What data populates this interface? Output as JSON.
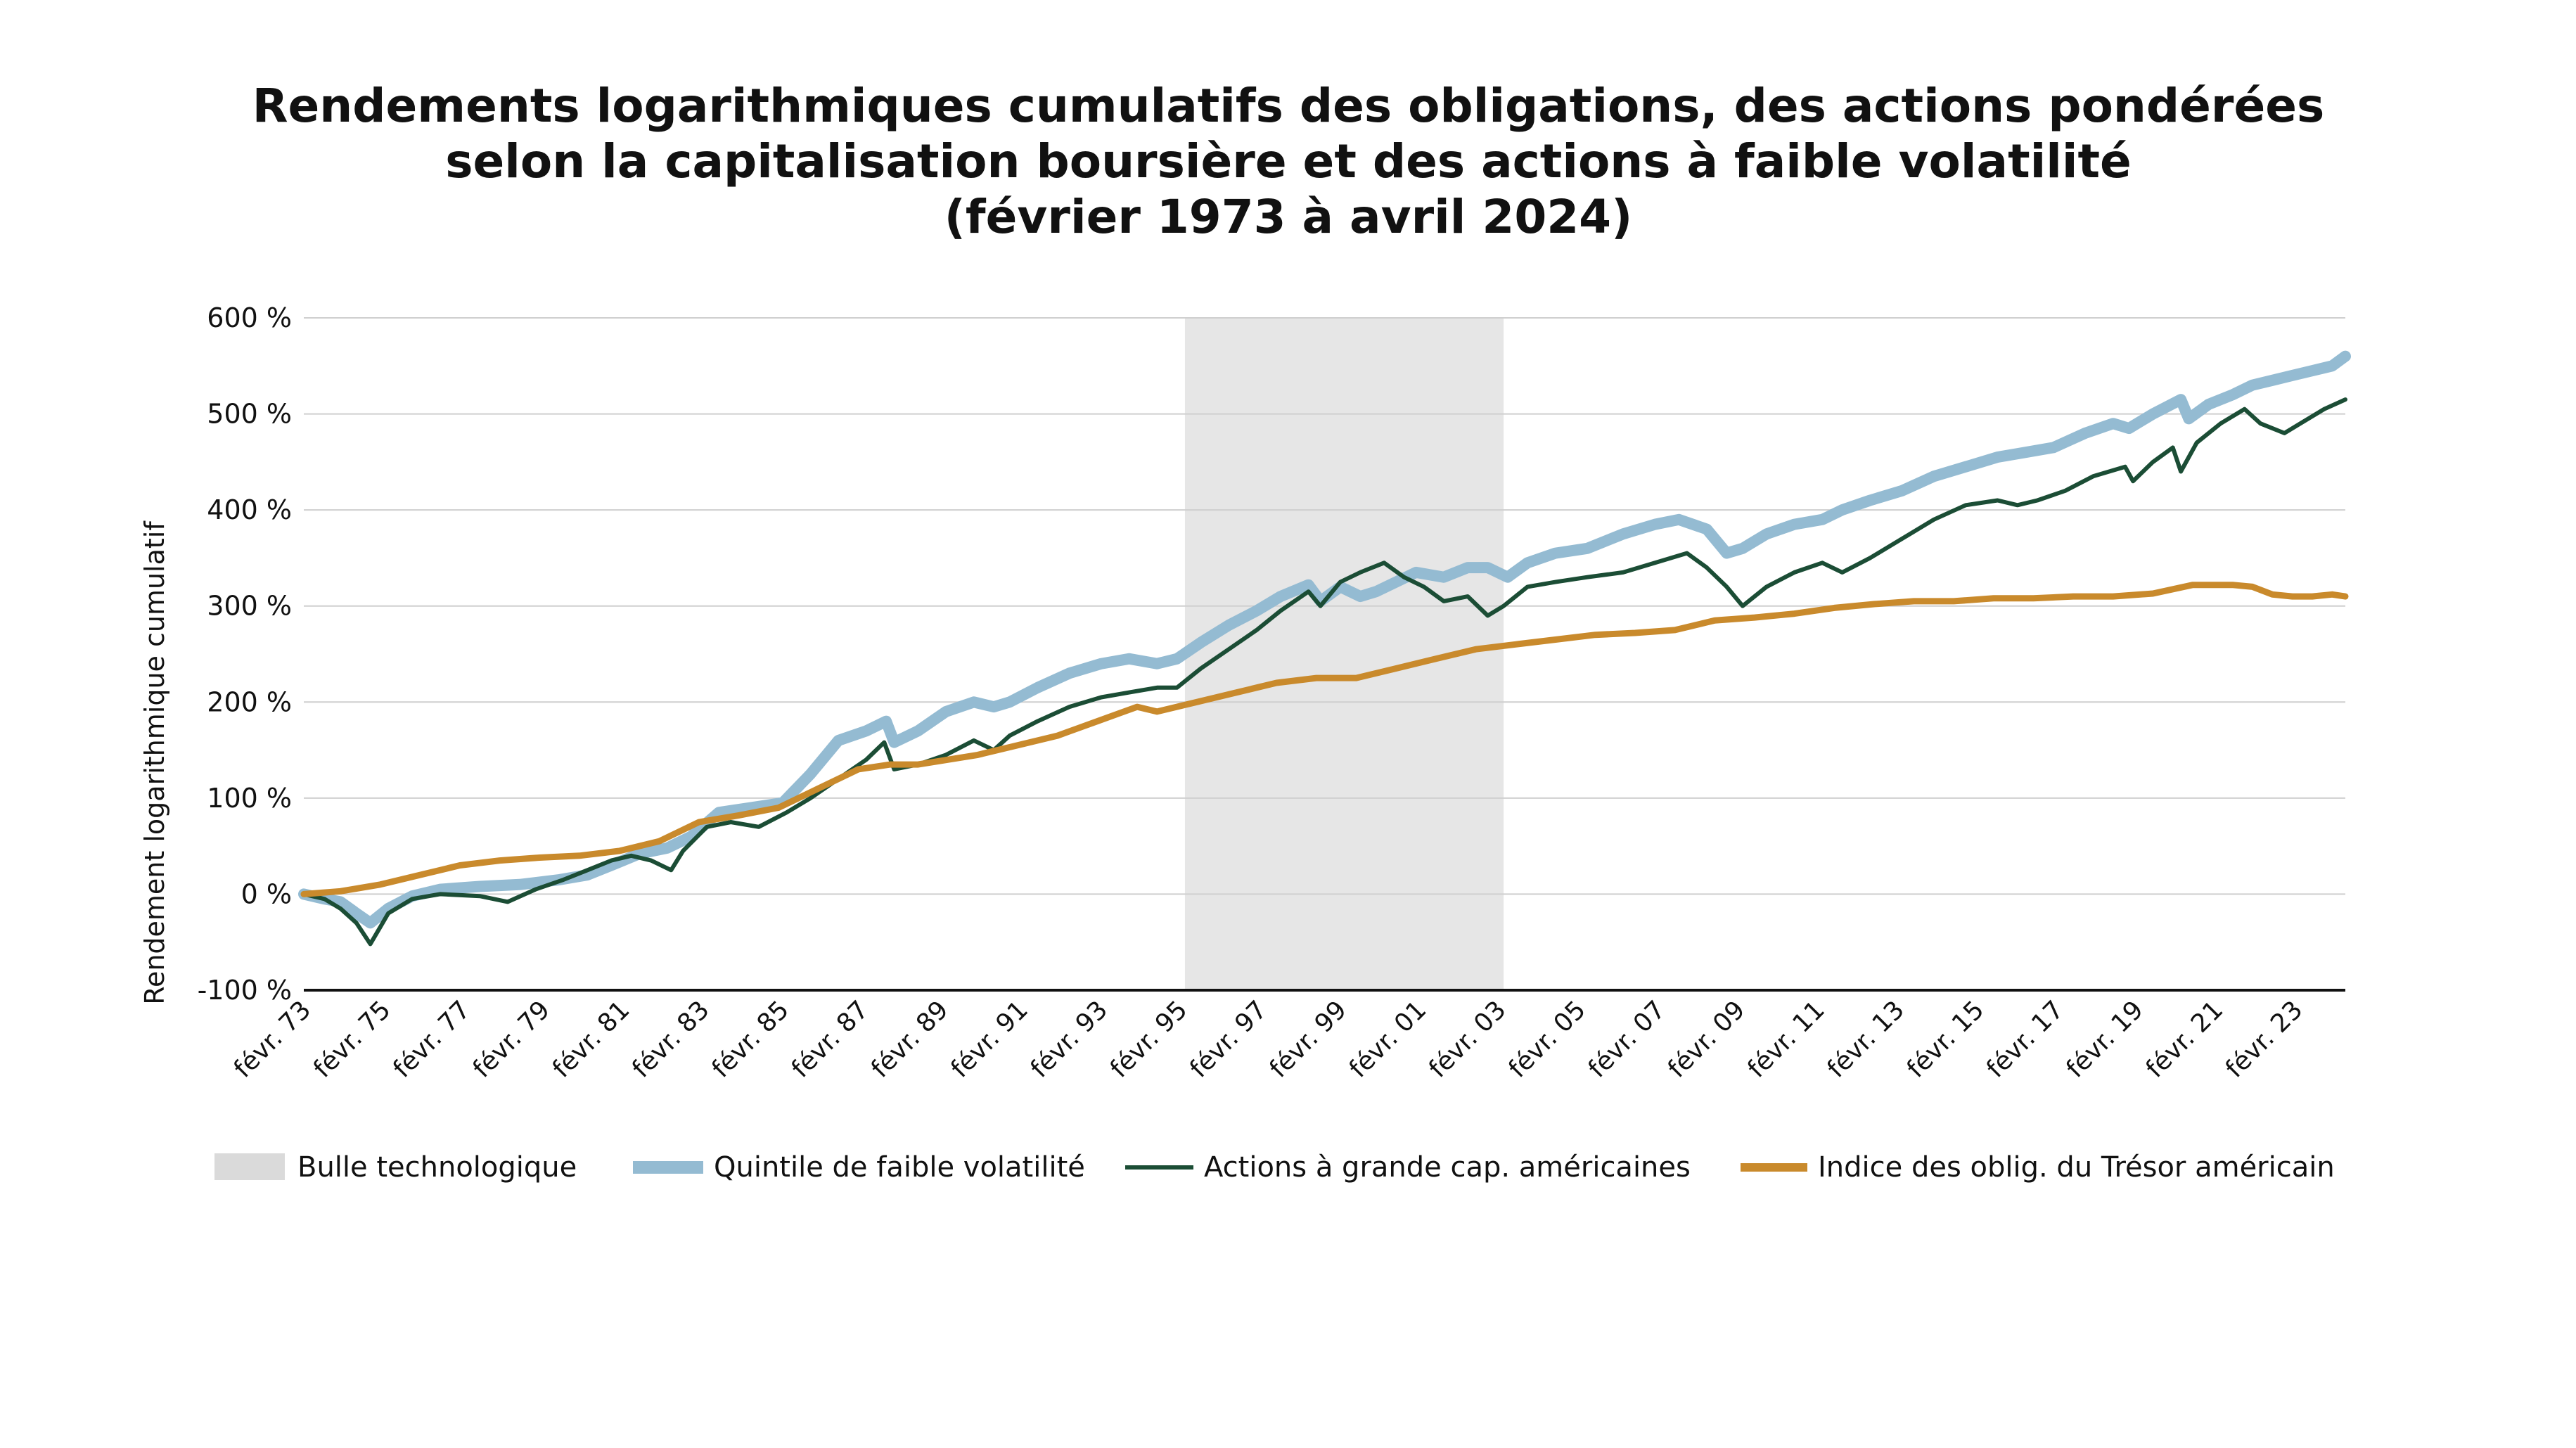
{
  "chart_data": {
    "type": "line",
    "title_lines": [
      "Rendements logarithmiques cumulatifs des obligations, des actions pondérées",
      "selon la capitalisation boursière et des actions à faible volatilité",
      "(février 1973 à avril 2024)"
    ],
    "ylabel": "Rendement logarithmique cumulatif",
    "xlabel": "",
    "xlim": [
      1973.08,
      2024.33
    ],
    "ylim": [
      -100,
      600
    ],
    "y_ticks": [
      {
        "value": 600,
        "label": "600 %"
      },
      {
        "value": 500,
        "label": "500 %"
      },
      {
        "value": 400,
        "label": "400 %"
      },
      {
        "value": 300,
        "label": "300 %"
      },
      {
        "value": 200,
        "label": "200 %"
      },
      {
        "value": 100,
        "label": "100 %"
      },
      {
        "value": 0,
        "label": "0 %"
      },
      {
        "value": -100,
        "label": "-100 %"
      }
    ],
    "x_ticks": [
      {
        "value": 1973.08,
        "label": "févr. 73"
      },
      {
        "value": 1975.08,
        "label": "févr. 75"
      },
      {
        "value": 1977.08,
        "label": "févr. 77"
      },
      {
        "value": 1979.08,
        "label": "févr. 79"
      },
      {
        "value": 1981.08,
        "label": "févr. 81"
      },
      {
        "value": 1983.08,
        "label": "févr. 83"
      },
      {
        "value": 1985.08,
        "label": "févr. 85"
      },
      {
        "value": 1987.08,
        "label": "févr. 87"
      },
      {
        "value": 1989.08,
        "label": "févr. 89"
      },
      {
        "value": 1991.08,
        "label": "févr. 91"
      },
      {
        "value": 1993.08,
        "label": "févr. 93"
      },
      {
        "value": 1995.08,
        "label": "févr. 95"
      },
      {
        "value": 1997.08,
        "label": "févr. 97"
      },
      {
        "value": 1999.08,
        "label": "févr. 99"
      },
      {
        "value": 2001.08,
        "label": "févr. 01"
      },
      {
        "value": 2003.08,
        "label": "févr. 03"
      },
      {
        "value": 2005.08,
        "label": "févr. 05"
      },
      {
        "value": 2007.08,
        "label": "févr. 07"
      },
      {
        "value": 2009.08,
        "label": "févr. 09"
      },
      {
        "value": 2011.08,
        "label": "févr. 11"
      },
      {
        "value": 2013.08,
        "label": "févr. 13"
      },
      {
        "value": 2015.08,
        "label": "févr. 15"
      },
      {
        "value": 2017.08,
        "label": "févr. 17"
      },
      {
        "value": 2019.08,
        "label": "févr. 19"
      },
      {
        "value": 2021.08,
        "label": "févr. 21"
      },
      {
        "value": 2023.08,
        "label": "févr. 23"
      }
    ],
    "grid": true,
    "legend_position": "bottom",
    "shaded_region": {
      "name": "Bulle technologique",
      "x_start": 1995.2,
      "x_end": 2003.2,
      "color": "#e6e6e6"
    },
    "series": [
      {
        "name": "Quintile de faible volatilité",
        "color": "#94bbd2",
        "x": [
          1973.08,
          1973.6,
          1974.0,
          1974.4,
          1974.75,
          1975.2,
          1975.8,
          1976.5,
          1977.5,
          1978.5,
          1979.5,
          1980.2,
          1980.8,
          1981.5,
          1982.2,
          1982.8,
          1983.5,
          1984.3,
          1985.1,
          1985.8,
          1986.5,
          1987.2,
          1987.7,
          1987.9,
          1988.5,
          1989.2,
          1989.9,
          1990.4,
          1990.8,
          1991.5,
          1992.3,
          1993.1,
          1993.8,
          1994.5,
          1995.0,
          1995.6,
          1996.3,
          1997.0,
          1997.6,
          1998.3,
          1998.6,
          1999.1,
          1999.6,
          2000.0,
          2000.5,
          2001.0,
          2001.7,
          2002.3,
          2002.8,
          2003.3,
          2003.8,
          2004.5,
          2005.3,
          2006.2,
          2007.0,
          2007.6,
          2008.3,
          2008.8,
          2009.2,
          2009.8,
          2010.5,
          2011.2,
          2011.7,
          2012.4,
          2013.2,
          2014.0,
          2014.8,
          2015.6,
          2016.3,
          2017.0,
          2017.8,
          2018.5,
          2018.9,
          2019.5,
          2020.2,
          2020.4,
          2020.9,
          2021.5,
          2022.0,
          2022.5,
          2023.0,
          2023.5,
          2024.0,
          2024.33
        ],
        "values": [
          0,
          -5,
          -8,
          -20,
          -30,
          -15,
          -2,
          5,
          8,
          10,
          15,
          20,
          30,
          42,
          48,
          60,
          85,
          90,
          95,
          125,
          160,
          170,
          180,
          158,
          170,
          190,
          200,
          195,
          200,
          215,
          230,
          240,
          245,
          240,
          245,
          262,
          280,
          295,
          310,
          322,
          305,
          320,
          310,
          315,
          325,
          335,
          330,
          340,
          340,
          330,
          345,
          355,
          360,
          375,
          385,
          390,
          380,
          355,
          360,
          375,
          385,
          390,
          400,
          410,
          420,
          435,
          445,
          455,
          460,
          465,
          480,
          490,
          485,
          500,
          515,
          495,
          510,
          520,
          530,
          535,
          540,
          545,
          550,
          560
        ]
      },
      {
        "name": "Actions à grande cap. américaines",
        "color": "#1b4d35",
        "x": [
          1973.08,
          1973.6,
          1974.0,
          1974.4,
          1974.75,
          1975.2,
          1975.8,
          1976.5,
          1977.5,
          1978.2,
          1978.9,
          1979.6,
          1980.2,
          1980.8,
          1981.3,
          1981.8,
          1982.3,
          1982.6,
          1983.2,
          1983.8,
          1984.5,
          1985.2,
          1985.8,
          1986.5,
          1987.2,
          1987.65,
          1987.9,
          1988.5,
          1989.2,
          1989.9,
          1990.4,
          1990.8,
          1991.5,
          1992.3,
          1993.1,
          1993.8,
          1994.5,
          1995.0,
          1995.6,
          1996.3,
          1997.0,
          1997.6,
          1998.3,
          1998.6,
          1999.1,
          1999.6,
          2000.2,
          2000.7,
          2001.2,
          2001.7,
          2002.3,
          2002.8,
          2003.2,
          2003.8,
          2004.5,
          2005.3,
          2006.2,
          2007.0,
          2007.8,
          2008.3,
          2008.8,
          2009.2,
          2009.8,
          2010.5,
          2011.2,
          2011.7,
          2012.4,
          2013.2,
          2014.0,
          2014.8,
          2015.6,
          2016.1,
          2016.6,
          2017.3,
          2018.0,
          2018.8,
          2019.0,
          2019.5,
          2020.0,
          2020.2,
          2020.6,
          2021.2,
          2021.8,
          2022.2,
          2022.8,
          2023.2,
          2023.8,
          2024.33
        ],
        "values": [
          0,
          -5,
          -15,
          -30,
          -52,
          -20,
          -5,
          0,
          -2,
          -8,
          5,
          15,
          25,
          35,
          40,
          35,
          25,
          45,
          70,
          75,
          70,
          85,
          100,
          120,
          140,
          158,
          130,
          135,
          145,
          160,
          150,
          165,
          180,
          195,
          205,
          210,
          215,
          215,
          235,
          255,
          275,
          295,
          315,
          300,
          325,
          335,
          345,
          330,
          320,
          305,
          310,
          290,
          300,
          320,
          325,
          330,
          335,
          345,
          355,
          340,
          320,
          300,
          320,
          335,
          345,
          335,
          350,
          370,
          390,
          405,
          410,
          405,
          410,
          420,
          435,
          445,
          430,
          450,
          465,
          440,
          470,
          490,
          505,
          490,
          480,
          490,
          505,
          515
        ]
      },
      {
        "name": "Indice des oblig. du Trésor américain",
        "color": "#c98a2c",
        "x": [
          1973.08,
          1974.0,
          1975.0,
          1976.0,
          1977.0,
          1978.0,
          1979.0,
          1980.0,
          1981.0,
          1982.0,
          1983.0,
          1984.0,
          1985.0,
          1986.0,
          1987.0,
          1987.8,
          1988.5,
          1990.0,
          1991.0,
          1992.0,
          1993.0,
          1994.0,
          1994.5,
          1995.5,
          1996.5,
          1997.5,
          1998.5,
          1999.5,
          2000.5,
          2001.5,
          2002.5,
          2003.5,
          2004.5,
          2005.5,
          2006.5,
          2007.5,
          2008.5,
          2009.5,
          2010.5,
          2011.5,
          2012.5,
          2013.5,
          2014.5,
          2015.5,
          2016.5,
          2017.5,
          2018.5,
          2019.5,
          2020.5,
          2021.5,
          2022.0,
          2022.5,
          2023.0,
          2023.5,
          2024.0,
          2024.33
        ],
        "values": [
          0,
          3,
          10,
          20,
          30,
          35,
          38,
          40,
          45,
          55,
          75,
          82,
          90,
          110,
          130,
          135,
          135,
          145,
          155,
          165,
          180,
          195,
          190,
          200,
          210,
          220,
          225,
          225,
          235,
          245,
          255,
          260,
          265,
          270,
          272,
          275,
          285,
          288,
          292,
          298,
          302,
          305,
          305,
          308,
          308,
          310,
          310,
          313,
          322,
          322,
          320,
          312,
          310,
          310,
          312,
          310
        ]
      }
    ]
  }
}
